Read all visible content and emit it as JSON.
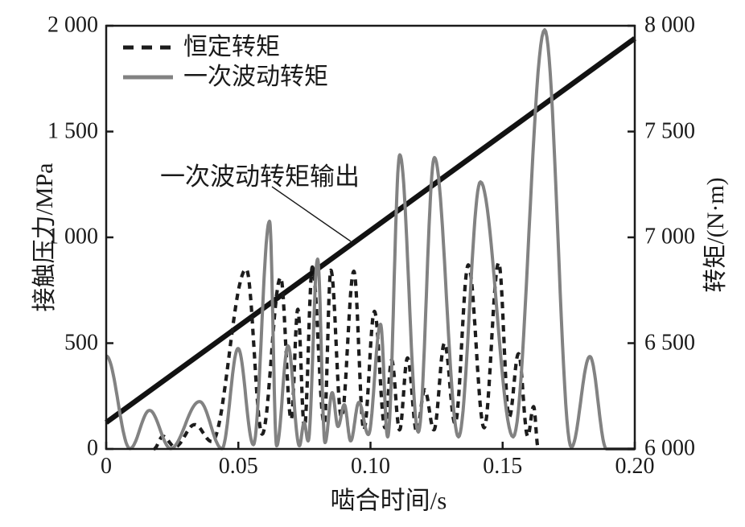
{
  "chart_data": {
    "type": "line",
    "title": "",
    "xlabel": "啮合时间/s",
    "grid": false,
    "x_axis": {
      "lim": [
        0,
        0.2
      ],
      "tick_values": [
        0,
        0.05,
        0.1,
        0.15,
        0.2
      ],
      "tick_labels": [
        "0",
        "0.05",
        "0.10",
        "0.15",
        "0.20"
      ]
    },
    "left_axis": {
      "label": "接触压力/MPa",
      "lim": [
        0,
        2000
      ],
      "tick_values": [
        0,
        500,
        1000,
        1500,
        2000
      ],
      "tick_labels": [
        "0",
        "500",
        "1 000",
        "1 500",
        "2 000"
      ]
    },
    "right_axis": {
      "label": "转矩/(N·m)",
      "lim": [
        6000,
        8000
      ],
      "tick_values": [
        6000,
        6500,
        7000,
        7500,
        8000
      ],
      "tick_labels": [
        "6 000",
        "6 500",
        "7 000",
        "7 500",
        "8 000"
      ]
    },
    "legend": {
      "position": "top-left-inside",
      "items": [
        {
          "label": "恒定转矩",
          "style": "dashed",
          "color": "#1c1c1c"
        },
        {
          "label": "一次波动转矩",
          "style": "solid",
          "color": "#828282"
        }
      ]
    },
    "annotation": {
      "text": "一次波动转矩输出",
      "points_to": "一次波动转矩输出"
    },
    "series": [
      {
        "name": "恒定转矩",
        "axis": "left",
        "style": "dashed",
        "color": "#1c1c1c",
        "width": 4.2,
        "interp": "cosine",
        "points": [
          [
            0.018,
            0
          ],
          [
            0.0215,
            60
          ],
          [
            0.026,
            10
          ],
          [
            0.0335,
            115
          ],
          [
            0.04,
            35
          ],
          [
            0.053,
            850
          ],
          [
            0.059,
            70
          ],
          [
            0.066,
            810
          ],
          [
            0.07,
            140
          ],
          [
            0.0725,
            660
          ],
          [
            0.075,
            100
          ],
          [
            0.078,
            860
          ],
          [
            0.0825,
            120
          ],
          [
            0.085,
            845
          ],
          [
            0.089,
            150
          ],
          [
            0.0937,
            840
          ],
          [
            0.0975,
            90
          ],
          [
            0.1015,
            650
          ],
          [
            0.1055,
            100
          ],
          [
            0.108,
            420
          ],
          [
            0.111,
            90
          ],
          [
            0.114,
            430
          ],
          [
            0.1175,
            80
          ],
          [
            0.1205,
            280
          ],
          [
            0.124,
            90
          ],
          [
            0.128,
            500
          ],
          [
            0.132,
            120
          ],
          [
            0.137,
            870
          ],
          [
            0.143,
            100
          ],
          [
            0.1485,
            880
          ],
          [
            0.1525,
            150
          ],
          [
            0.156,
            450
          ],
          [
            0.1595,
            60
          ],
          [
            0.1617,
            200
          ],
          [
            0.1635,
            0
          ]
        ]
      },
      {
        "name": "一次波动转矩",
        "axis": "left",
        "style": "solid",
        "color": "#828282",
        "width": 4,
        "interp": "cosine",
        "points": [
          [
            0.0,
            440
          ],
          [
            0.009,
            2
          ],
          [
            0.0164,
            182
          ],
          [
            0.0244,
            2
          ],
          [
            0.0353,
            224
          ],
          [
            0.0438,
            2
          ],
          [
            0.0499,
            475
          ],
          [
            0.0557,
            20
          ],
          [
            0.0618,
            1076
          ],
          [
            0.0645,
            15
          ],
          [
            0.0688,
            487
          ],
          [
            0.0731,
            15
          ],
          [
            0.0749,
            125
          ],
          [
            0.0764,
            38
          ],
          [
            0.08,
            897
          ],
          [
            0.0828,
            30
          ],
          [
            0.0855,
            266
          ],
          [
            0.0877,
            106
          ],
          [
            0.0901,
            209
          ],
          [
            0.0925,
            38
          ],
          [
            0.0956,
            220
          ],
          [
            0.0992,
            68
          ],
          [
            0.1038,
            589
          ],
          [
            0.1065,
            57
          ],
          [
            0.1111,
            1390
          ],
          [
            0.1181,
            80
          ],
          [
            0.1242,
            1377
          ],
          [
            0.1333,
            57
          ],
          [
            0.1416,
            1262
          ],
          [
            0.154,
            57
          ],
          [
            0.1659,
            1981
          ],
          [
            0.176,
            8
          ],
          [
            0.183,
            437
          ],
          [
            0.1893,
            0
          ],
          [
            0.2,
            0
          ]
        ]
      },
      {
        "name": "一次波动转矩输出",
        "axis": "right",
        "style": "solid",
        "color": "#121212",
        "width": 6.5,
        "interp": "linear",
        "points": [
          [
            0,
            6125
          ],
          [
            0.2,
            7940
          ]
        ]
      }
    ]
  }
}
